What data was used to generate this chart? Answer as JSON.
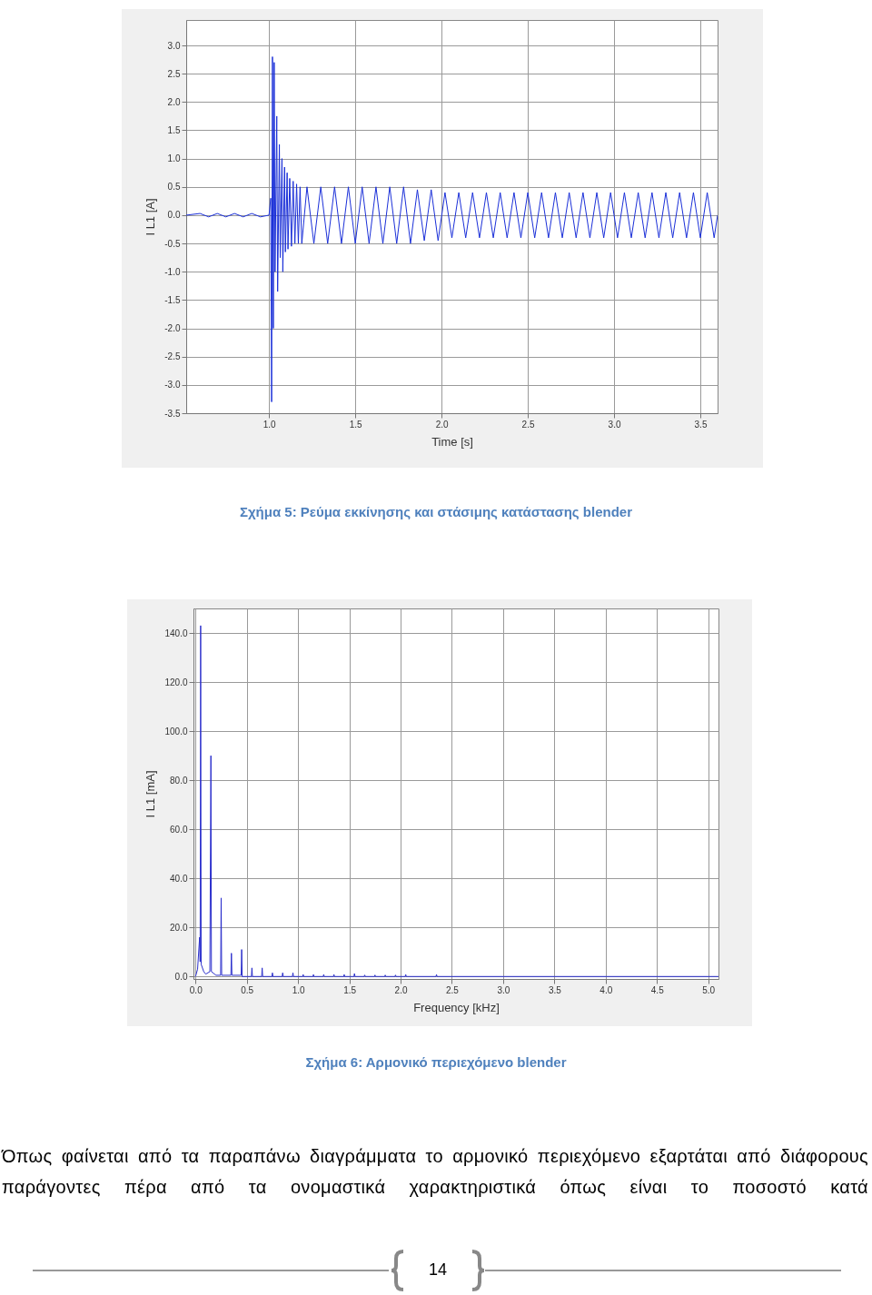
{
  "chart_data": [
    {
      "type": "line",
      "xlabel": "Time [s]",
      "ylabel": "I L1 [A]",
      "xlim": [
        0.52,
        3.6
      ],
      "ylim": [
        -3.5,
        3.45
      ],
      "xticks": [
        {
          "value": 1,
          "label": "1.0"
        },
        1.5,
        {
          "value": 2,
          "label": "2.0"
        },
        2.5,
        {
          "value": 3,
          "label": "3.0"
        },
        3.5
      ],
      "yticks": [
        {
          "value": -3.5,
          "label": "-3.5"
        },
        {
          "value": -3,
          "label": "-3.0"
        },
        -2.5,
        {
          "value": -2,
          "label": "-2.0"
        },
        -1.5,
        {
          "value": -1,
          "label": "-1.0"
        },
        -0.5,
        {
          "value": 0,
          "label": "0.0"
        },
        0.5,
        {
          "value": 1,
          "label": "1.0"
        },
        1.5,
        {
          "value": 2,
          "label": "2.0"
        },
        2.5,
        {
          "value": 3,
          "label": "3.0"
        }
      ],
      "grid": true,
      "x": [
        0.52,
        0.6,
        0.65,
        0.7,
        0.75,
        0.8,
        0.85,
        0.9,
        0.95,
        1.0,
        1.01,
        1.015,
        1.02,
        1.025,
        1.03,
        1.035,
        1.045,
        1.05,
        1.06,
        1.065,
        1.075,
        1.08,
        1.09,
        1.095,
        1.105,
        1.11,
        1.12,
        1.13,
        1.14,
        1.15,
        1.16,
        1.17,
        1.18,
        1.19,
        1.22,
        1.26,
        1.3,
        1.34,
        1.38,
        1.42,
        1.46,
        1.5,
        1.54,
        1.58,
        1.62,
        1.66,
        1.7,
        1.74,
        1.78,
        1.82,
        1.86,
        1.9,
        1.94,
        1.98,
        2.02,
        2.06,
        2.1,
        2.14,
        2.18,
        2.22,
        2.26,
        2.3,
        2.34,
        2.38,
        2.42,
        2.46,
        2.5,
        2.54,
        2.58,
        2.62,
        2.66,
        2.7,
        2.74,
        2.78,
        2.82,
        2.86,
        2.9,
        2.94,
        2.98,
        3.02,
        3.06,
        3.1,
        3.14,
        3.18,
        3.22,
        3.26,
        3.3,
        3.34,
        3.38,
        3.42,
        3.46,
        3.5,
        3.54,
        3.58,
        3.6
      ],
      "series": [
        {
          "color": "#1a2fd8",
          "values": [
            0,
            0.03,
            -0.03,
            0.03,
            -0.03,
            0.03,
            -0.03,
            0.03,
            -0.03,
            0,
            0.3,
            -3.3,
            2.8,
            -2.0,
            2.7,
            -1.0,
            1.75,
            -1.35,
            1.25,
            -0.75,
            1.0,
            -1.0,
            0.85,
            -0.65,
            0.75,
            -0.6,
            0.65,
            -0.55,
            0.6,
            -0.5,
            0.55,
            -0.5,
            0.5,
            -0.5,
            0.5,
            -0.5,
            0.5,
            -0.5,
            0.5,
            -0.5,
            0.5,
            -0.5,
            0.5,
            -0.5,
            0.5,
            -0.5,
            0.5,
            -0.5,
            0.5,
            -0.5,
            0.45,
            -0.45,
            0.45,
            -0.45,
            0.4,
            -0.4,
            0.4,
            -0.4,
            0.4,
            -0.4,
            0.4,
            -0.4,
            0.4,
            -0.4,
            0.4,
            -0.4,
            0.4,
            -0.4,
            0.4,
            -0.4,
            0.4,
            -0.4,
            0.4,
            -0.4,
            0.4,
            -0.4,
            0.4,
            -0.4,
            0.4,
            -0.4,
            0.4,
            -0.4,
            0.4,
            -0.4,
            0.4,
            -0.4,
            0.4,
            -0.4,
            0.4,
            -0.4,
            0.4,
            -0.4,
            0.4,
            -0.4,
            0
          ]
        }
      ],
      "annotations": [
        "Σχήμα 5: Ρεύμα εκκίνησης και στάσιμης κατάστασης blender"
      ]
    },
    {
      "type": "line",
      "xlabel": "Frequency [kHz]",
      "ylabel": "I L1 [mA]",
      "xlim": [
        -0.02,
        5.1
      ],
      "ylim": [
        -1,
        150
      ],
      "xticks": [
        {
          "value": 0,
          "label": "0.0"
        },
        0.5,
        {
          "value": 1,
          "label": "1.0"
        },
        1.5,
        {
          "value": 2,
          "label": "2.0"
        },
        2.5,
        {
          "value": 3,
          "label": "3.0"
        },
        3.5,
        {
          "value": 4,
          "label": "4.0"
        },
        4.5,
        {
          "value": 5,
          "label": "5.0"
        }
      ],
      "yticks": [
        {
          "value": 0,
          "label": "0.0"
        },
        {
          "value": 20,
          "label": "20.0"
        },
        {
          "value": 40,
          "label": "40.0"
        },
        {
          "value": 60,
          "label": "60.0"
        },
        {
          "value": 80,
          "label": "80.0"
        },
        {
          "value": 100,
          "label": "100.0"
        },
        {
          "value": 120,
          "label": "120.0"
        },
        {
          "value": 140,
          "label": "140.0"
        }
      ],
      "grid": true,
      "x": [
        0,
        0.02,
        0.04,
        0.045,
        0.05,
        0.055,
        0.08,
        0.1,
        0.14,
        0.15,
        0.155,
        0.2,
        0.245,
        0.25,
        0.255,
        0.345,
        0.35,
        0.355,
        0.445,
        0.45,
        0.455,
        0.545,
        0.55,
        0.555,
        0.645,
        0.65,
        0.655,
        0.745,
        0.75,
        0.755,
        0.845,
        0.85,
        0.855,
        0.945,
        0.95,
        0.955,
        1.045,
        1.05,
        1.055,
        1.145,
        1.15,
        1.155,
        1.245,
        1.25,
        1.255,
        1.345,
        1.35,
        1.355,
        1.445,
        1.45,
        1.455,
        1.545,
        1.55,
        1.555,
        1.645,
        1.65,
        1.655,
        1.745,
        1.75,
        1.755,
        1.845,
        1.85,
        1.855,
        1.945,
        1.95,
        1.955,
        2.045,
        2.05,
        2.055,
        2.345,
        2.35,
        2.355,
        5.1
      ],
      "series": [
        {
          "color": "#2b2fcc",
          "values": [
            0,
            3,
            16,
            6,
            143,
            5,
            2,
            1,
            2,
            90,
            2,
            0.5,
            0.5,
            32,
            0.5,
            0.5,
            9.5,
            0.5,
            0.5,
            11,
            0,
            0,
            3.5,
            0,
            0,
            3.5,
            0,
            0,
            1.5,
            0,
            0,
            1.5,
            0,
            0,
            1.5,
            0,
            0,
            0.8,
            0,
            0,
            0.8,
            0,
            0,
            0.8,
            0,
            0,
            0.8,
            0,
            0,
            0.8,
            0,
            0,
            1.2,
            0,
            0,
            0.6,
            0,
            0,
            0.6,
            0,
            0,
            0.6,
            0,
            0,
            0.6,
            0,
            0,
            0.8,
            0,
            0,
            0.8,
            0,
            0
          ]
        }
      ],
      "annotations": [
        "Σχήμα 6: Αρμονικό περιεχόμενο blender",
        "Όπως φαίνεται από τα παραπάνω διαγράμματα το αρμονικό περιεχόμενο εξαρτάται από διάφορους παράγοντες πέρα από τα ονομαστικά χαρακτηριστικά όπως είναι το ποσοστό κατά",
        "14"
      ]
    }
  ]
}
